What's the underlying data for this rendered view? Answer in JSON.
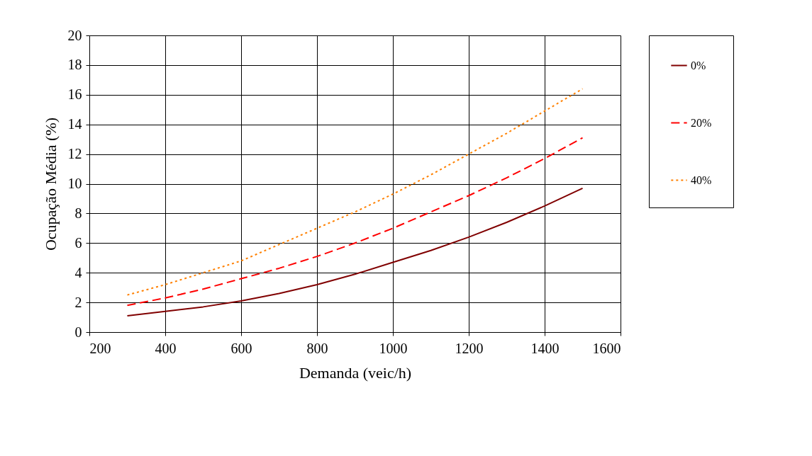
{
  "chart_data": {
    "type": "line",
    "xlabel": "Demanda (veic/h)",
    "ylabel": "Ocupação Média (%)",
    "x": [
      300,
      400,
      500,
      600,
      700,
      800,
      900,
      1000,
      1100,
      1200,
      1300,
      1400,
      1500
    ],
    "series": [
      {
        "name": "0%",
        "color": "#800000",
        "line_style": "solid",
        "values": [
          1.1,
          1.4,
          1.7,
          2.1,
          2.6,
          3.2,
          3.9,
          4.7,
          5.5,
          6.4,
          7.4,
          8.5,
          9.7
        ]
      },
      {
        "name": "20%",
        "color": "#ff0000",
        "line_style": "dashed",
        "values": [
          1.8,
          2.3,
          2.9,
          3.6,
          4.3,
          5.1,
          6.0,
          7.0,
          8.1,
          9.2,
          10.4,
          11.7,
          13.1
        ]
      },
      {
        "name": "40%",
        "color": "#ff8000",
        "line_style": "dotted",
        "values": [
          2.5,
          3.2,
          4.0,
          4.8,
          5.9,
          7.0,
          8.1,
          9.3,
          10.6,
          12.0,
          13.4,
          14.9,
          16.4
        ]
      }
    ],
    "xlim": [
      200,
      1600
    ],
    "xticks": [
      200,
      400,
      600,
      800,
      1000,
      1200,
      1400,
      1600
    ],
    "ylim": [
      0,
      20
    ],
    "yticks": [
      0,
      2,
      4,
      6,
      8,
      10,
      12,
      14,
      16,
      18,
      20
    ],
    "grid": true,
    "legend": "right",
    "marker": "none"
  }
}
